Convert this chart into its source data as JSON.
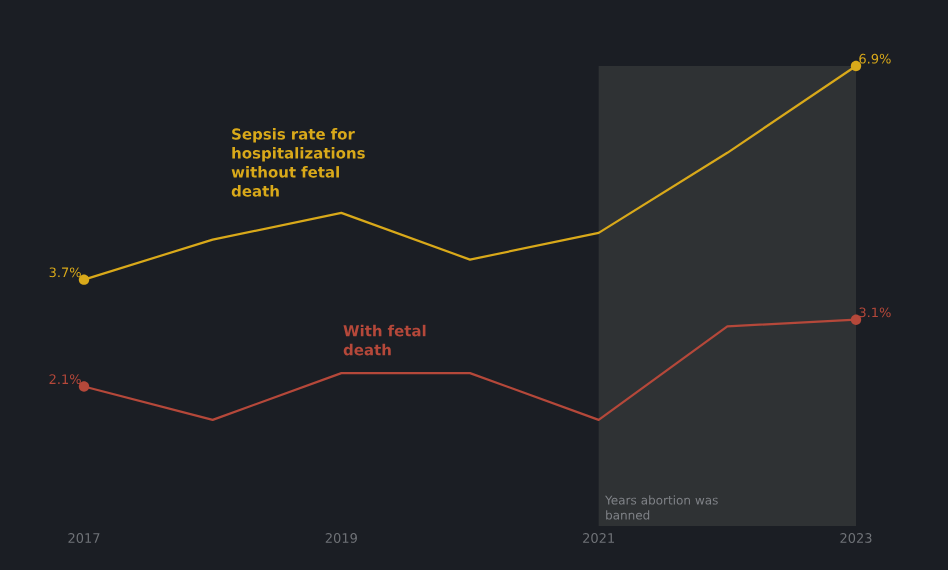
{
  "chart_data": {
    "type": "line",
    "x": [
      2017,
      2018,
      2019,
      2020,
      2021,
      2022,
      2023
    ],
    "series": [
      {
        "name": "Sepsis rate for hospitalizations without fetal death",
        "color": "#d9a91a",
        "values": [
          3.7,
          4.3,
          4.7,
          4.0,
          4.4,
          5.6,
          6.9
        ],
        "value_labels": [
          "3.7%",
          null,
          null,
          null,
          null,
          null,
          "6.9%"
        ]
      },
      {
        "name": "With fetal death",
        "color": "#b5483a",
        "values": [
          2.1,
          1.6,
          2.3,
          2.3,
          1.6,
          3.0,
          3.1
        ],
        "value_labels": [
          "2.1%",
          null,
          null,
          null,
          null,
          null,
          "3.1%"
        ]
      }
    ],
    "xlim": [
      2017,
      2023
    ],
    "xticks": [
      2017,
      2019,
      2021,
      2023
    ],
    "tick_labels": "x",
    "grid": false,
    "bands": [
      {
        "axis": "x",
        "from": 2021,
        "to": 2023,
        "label": "Years abortion was banned",
        "color": "#2f3234"
      }
    ]
  }
}
